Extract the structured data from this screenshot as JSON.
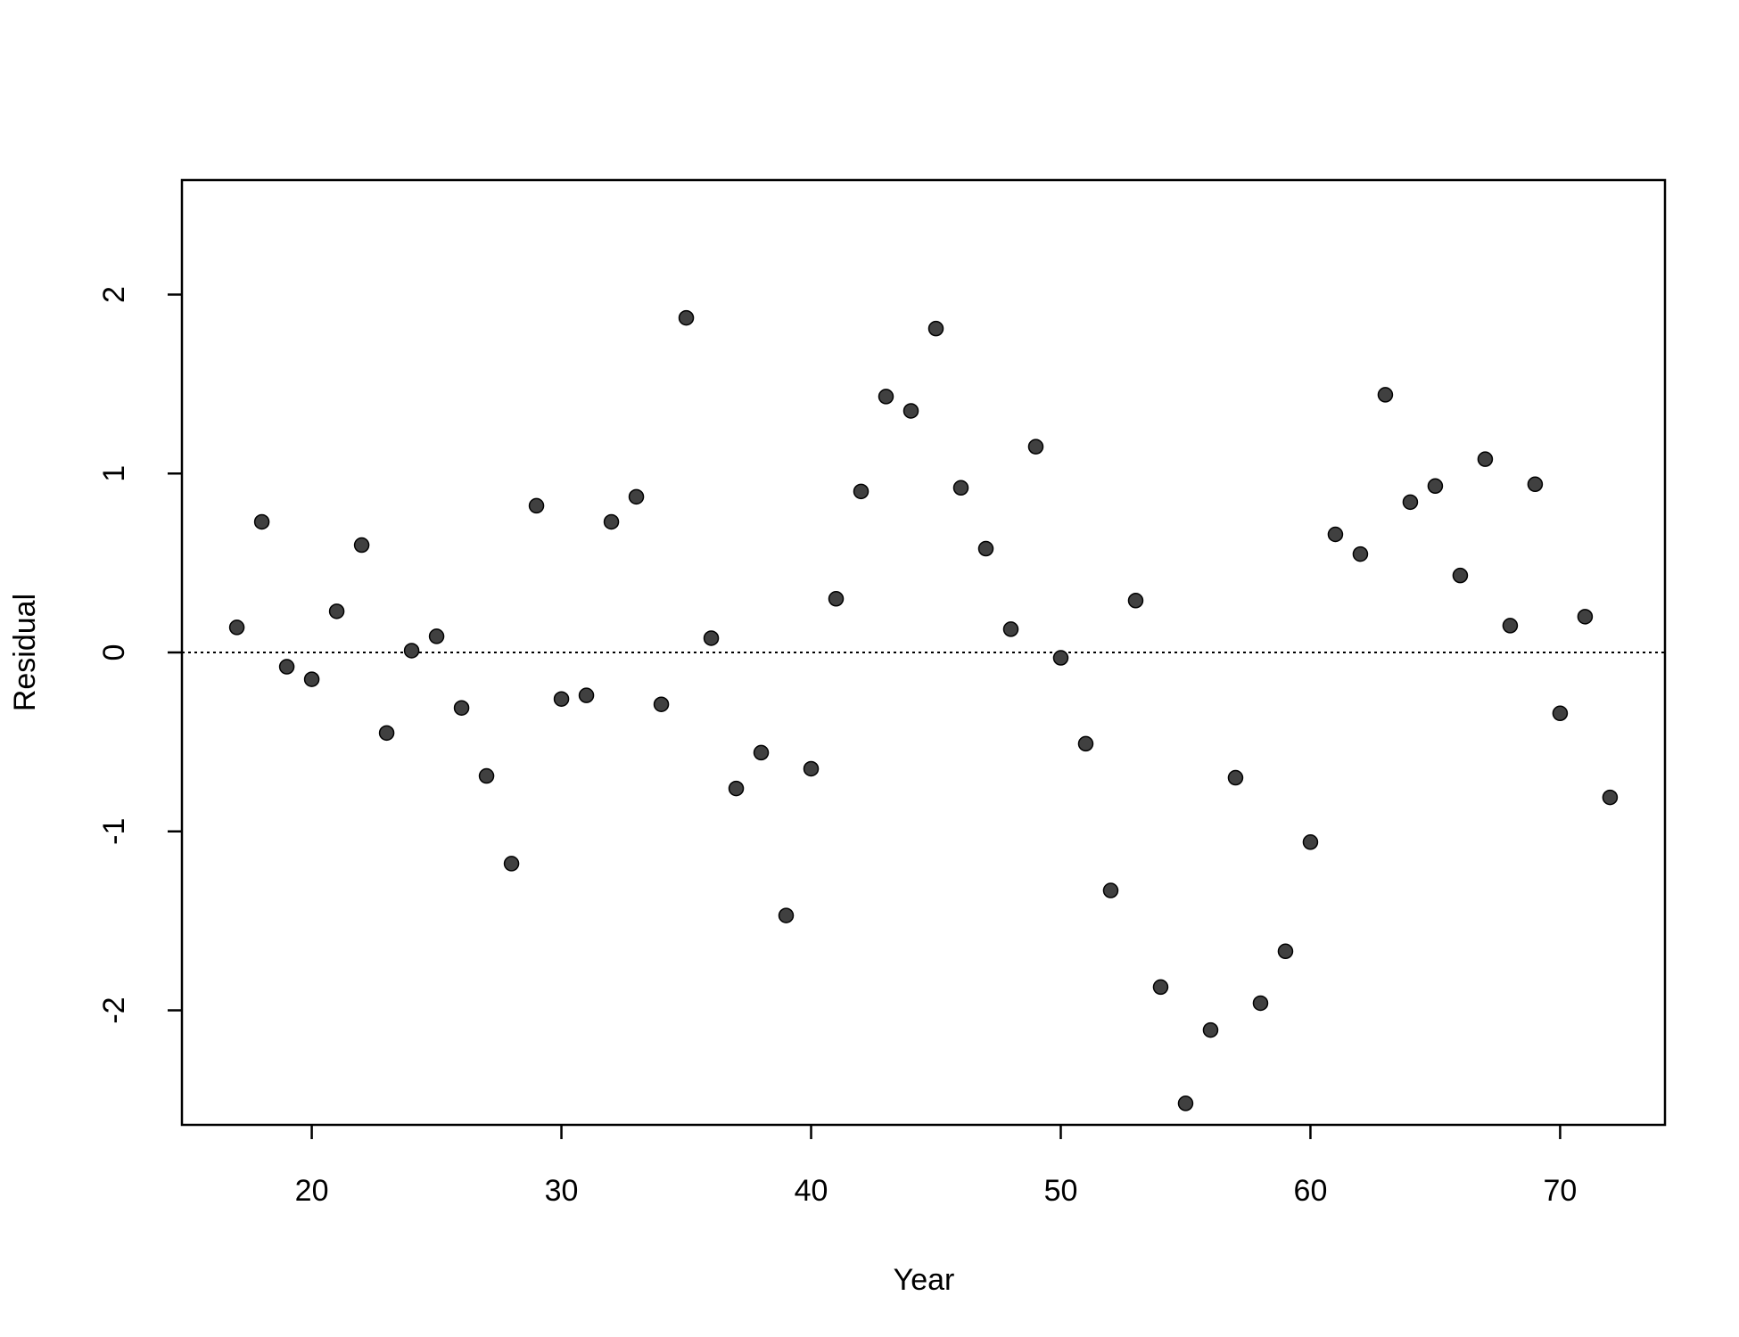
{
  "chart_data": {
    "type": "scatter",
    "x_label": "Year",
    "y_label": "Residual",
    "x": [
      17,
      18,
      19,
      20,
      21,
      22,
      23,
      24,
      25,
      26,
      27,
      28,
      29,
      30,
      31,
      32,
      33,
      34,
      35,
      36,
      37,
      38,
      39,
      40,
      41,
      42,
      43,
      44,
      45,
      46,
      47,
      48,
      49,
      50,
      51,
      52,
      53,
      54,
      55,
      56,
      57,
      58,
      59,
      60,
      61,
      62,
      63,
      64,
      65,
      66,
      67,
      68,
      69,
      70,
      71,
      72
    ],
    "values": [
      0.14,
      0.73,
      -0.08,
      -0.15,
      0.23,
      0.6,
      -0.45,
      0.01,
      0.09,
      -0.31,
      -0.69,
      -1.18,
      0.82,
      -0.26,
      -0.24,
      0.73,
      0.87,
      -0.29,
      1.87,
      0.08,
      -0.76,
      -0.56,
      -1.47,
      -0.65,
      0.3,
      0.9,
      1.43,
      1.35,
      1.81,
      0.92,
      0.58,
      0.13,
      1.15,
      -0.03,
      -0.51,
      -1.33,
      0.29,
      -1.87,
      -2.52,
      -2.11,
      -0.7,
      -1.96,
      -1.67,
      -1.06,
      0.66,
      0.55,
      1.44,
      0.84,
      0.93,
      0.43,
      1.08,
      0.15,
      0.94,
      -0.34,
      0.2,
      -0.81
    ],
    "color": "#404040",
    "xlim": [
      14.8,
      74.2
    ],
    "ylim": [
      -2.64,
      2.64
    ],
    "xticks": [
      20,
      30,
      40,
      50,
      60,
      70
    ],
    "yticks": [
      -2,
      -1,
      0,
      1,
      2
    ],
    "hline": 0
  }
}
